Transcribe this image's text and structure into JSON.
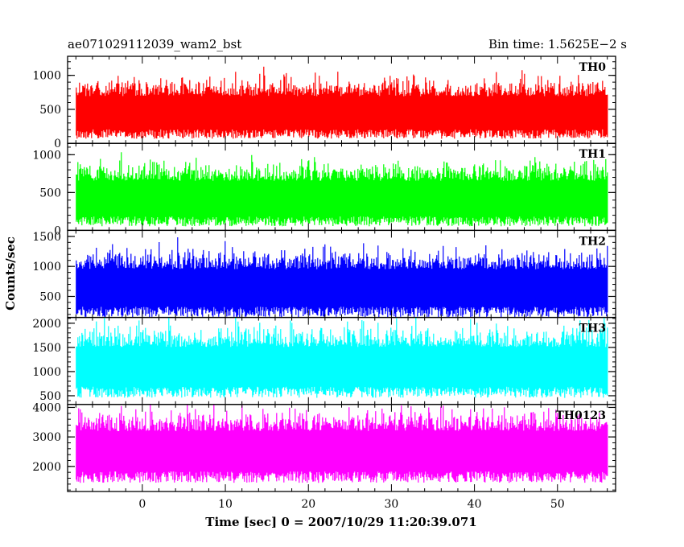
{
  "header": {
    "left": "ae071029112039_wam2_bst",
    "right": "Bin time: 1.5625E−2 s"
  },
  "chart_data": {
    "type": "line",
    "xlabel": "Time [sec] 0 = 2007/10/29 11:20:39.071",
    "ylabel": "Counts/sec",
    "xlim": [
      -9,
      57
    ],
    "x_ticks": [
      0,
      10,
      20,
      30,
      40,
      50
    ],
    "x_minor_step": 2,
    "data_range": [
      -8,
      56
    ],
    "bin_time": 0.015625,
    "panels": [
      {
        "name": "TH0",
        "color": "#ff0000",
        "ylim": [
          0,
          1280
        ],
        "y_ticks": [
          0,
          500,
          1000
        ],
        "y_minor_step": 100,
        "mean": 480,
        "spread": 250
      },
      {
        "name": "TH1",
        "color": "#00ff00",
        "ylim": [
          0,
          1150
        ],
        "y_ticks": [
          0,
          500,
          1000
        ],
        "y_minor_step": 100,
        "mean": 450,
        "spread": 240
      },
      {
        "name": "TH2",
        "color": "#0000ff",
        "ylim": [
          150,
          1600
        ],
        "y_ticks": [
          500,
          1000,
          1500
        ],
        "y_minor_step": 100,
        "mean": 680,
        "spread": 320
      },
      {
        "name": "TH3",
        "color": "#00ffff",
        "ylim": [
          320,
          2120
        ],
        "y_ticks": [
          500,
          1000,
          1500,
          2000
        ],
        "y_minor_step": 100,
        "mean": 1150,
        "spread": 420
      },
      {
        "name": "TH0123",
        "color": "#ff00ff",
        "ylim": [
          1150,
          4100
        ],
        "y_ticks": [
          2000,
          3000,
          4000
        ],
        "y_minor_step": 200,
        "mean": 2600,
        "spread": 700
      }
    ]
  }
}
